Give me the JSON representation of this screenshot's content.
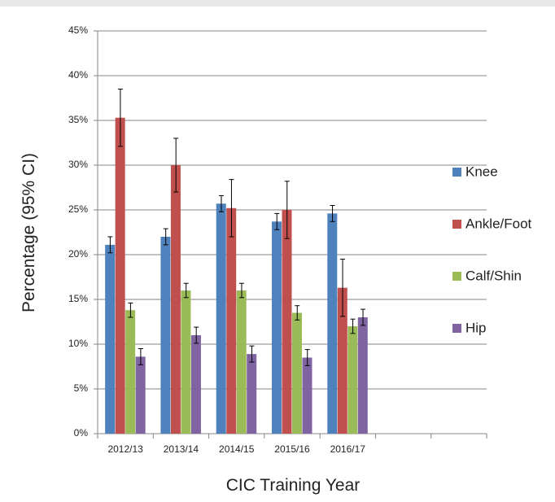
{
  "chart_data": {
    "type": "bar",
    "x_label": "CIC Training Year",
    "y_label": "Percentage (95% CI)",
    "categories": [
      "2012/13",
      "2013/14",
      "2014/15",
      "2015/16",
      "2016/17",
      null,
      null
    ],
    "series": [
      {
        "name": "Knee",
        "color": "#4f81bd",
        "values": [
          21.1,
          22.0,
          25.7,
          23.7,
          24.6,
          null,
          null
        ],
        "errors": [
          0.9,
          0.9,
          0.9,
          0.9,
          0.9,
          null,
          null
        ]
      },
      {
        "name": "Ankle/Foot",
        "color": "#c0504d",
        "values": [
          35.3,
          30.0,
          25.2,
          25.0,
          16.3,
          null,
          null
        ],
        "errors": [
          3.2,
          3.0,
          3.2,
          3.2,
          3.2,
          null,
          null
        ]
      },
      {
        "name": "Calf/Shin",
        "color": "#9bbb59",
        "values": [
          13.8,
          16.0,
          16.0,
          13.5,
          12.0,
          null,
          null
        ],
        "errors": [
          0.8,
          0.8,
          0.8,
          0.8,
          0.8,
          null,
          null
        ]
      },
      {
        "name": "Hip",
        "color": "#8064a2",
        "values": [
          8.6,
          11.0,
          8.9,
          8.5,
          13.0,
          null,
          null
        ],
        "errors": [
          0.9,
          0.9,
          0.9,
          0.9,
          0.9,
          null,
          null
        ]
      }
    ],
    "ylim": [
      0,
      45
    ],
    "yticks": [
      {
        "value": 0,
        "label": "0%"
      },
      {
        "value": 5,
        "label": "5%"
      },
      {
        "value": 10,
        "label": "10%"
      },
      {
        "value": 15,
        "label": "15%"
      },
      {
        "value": 20,
        "label": "20%"
      },
      {
        "value": 25,
        "label": "25%"
      },
      {
        "value": 30,
        "label": "30%"
      },
      {
        "value": 35,
        "label": "35%"
      },
      {
        "value": 40,
        "label": "40%"
      },
      {
        "value": 45,
        "label": "45%"
      }
    ],
    "grid": true,
    "legend": "right"
  }
}
